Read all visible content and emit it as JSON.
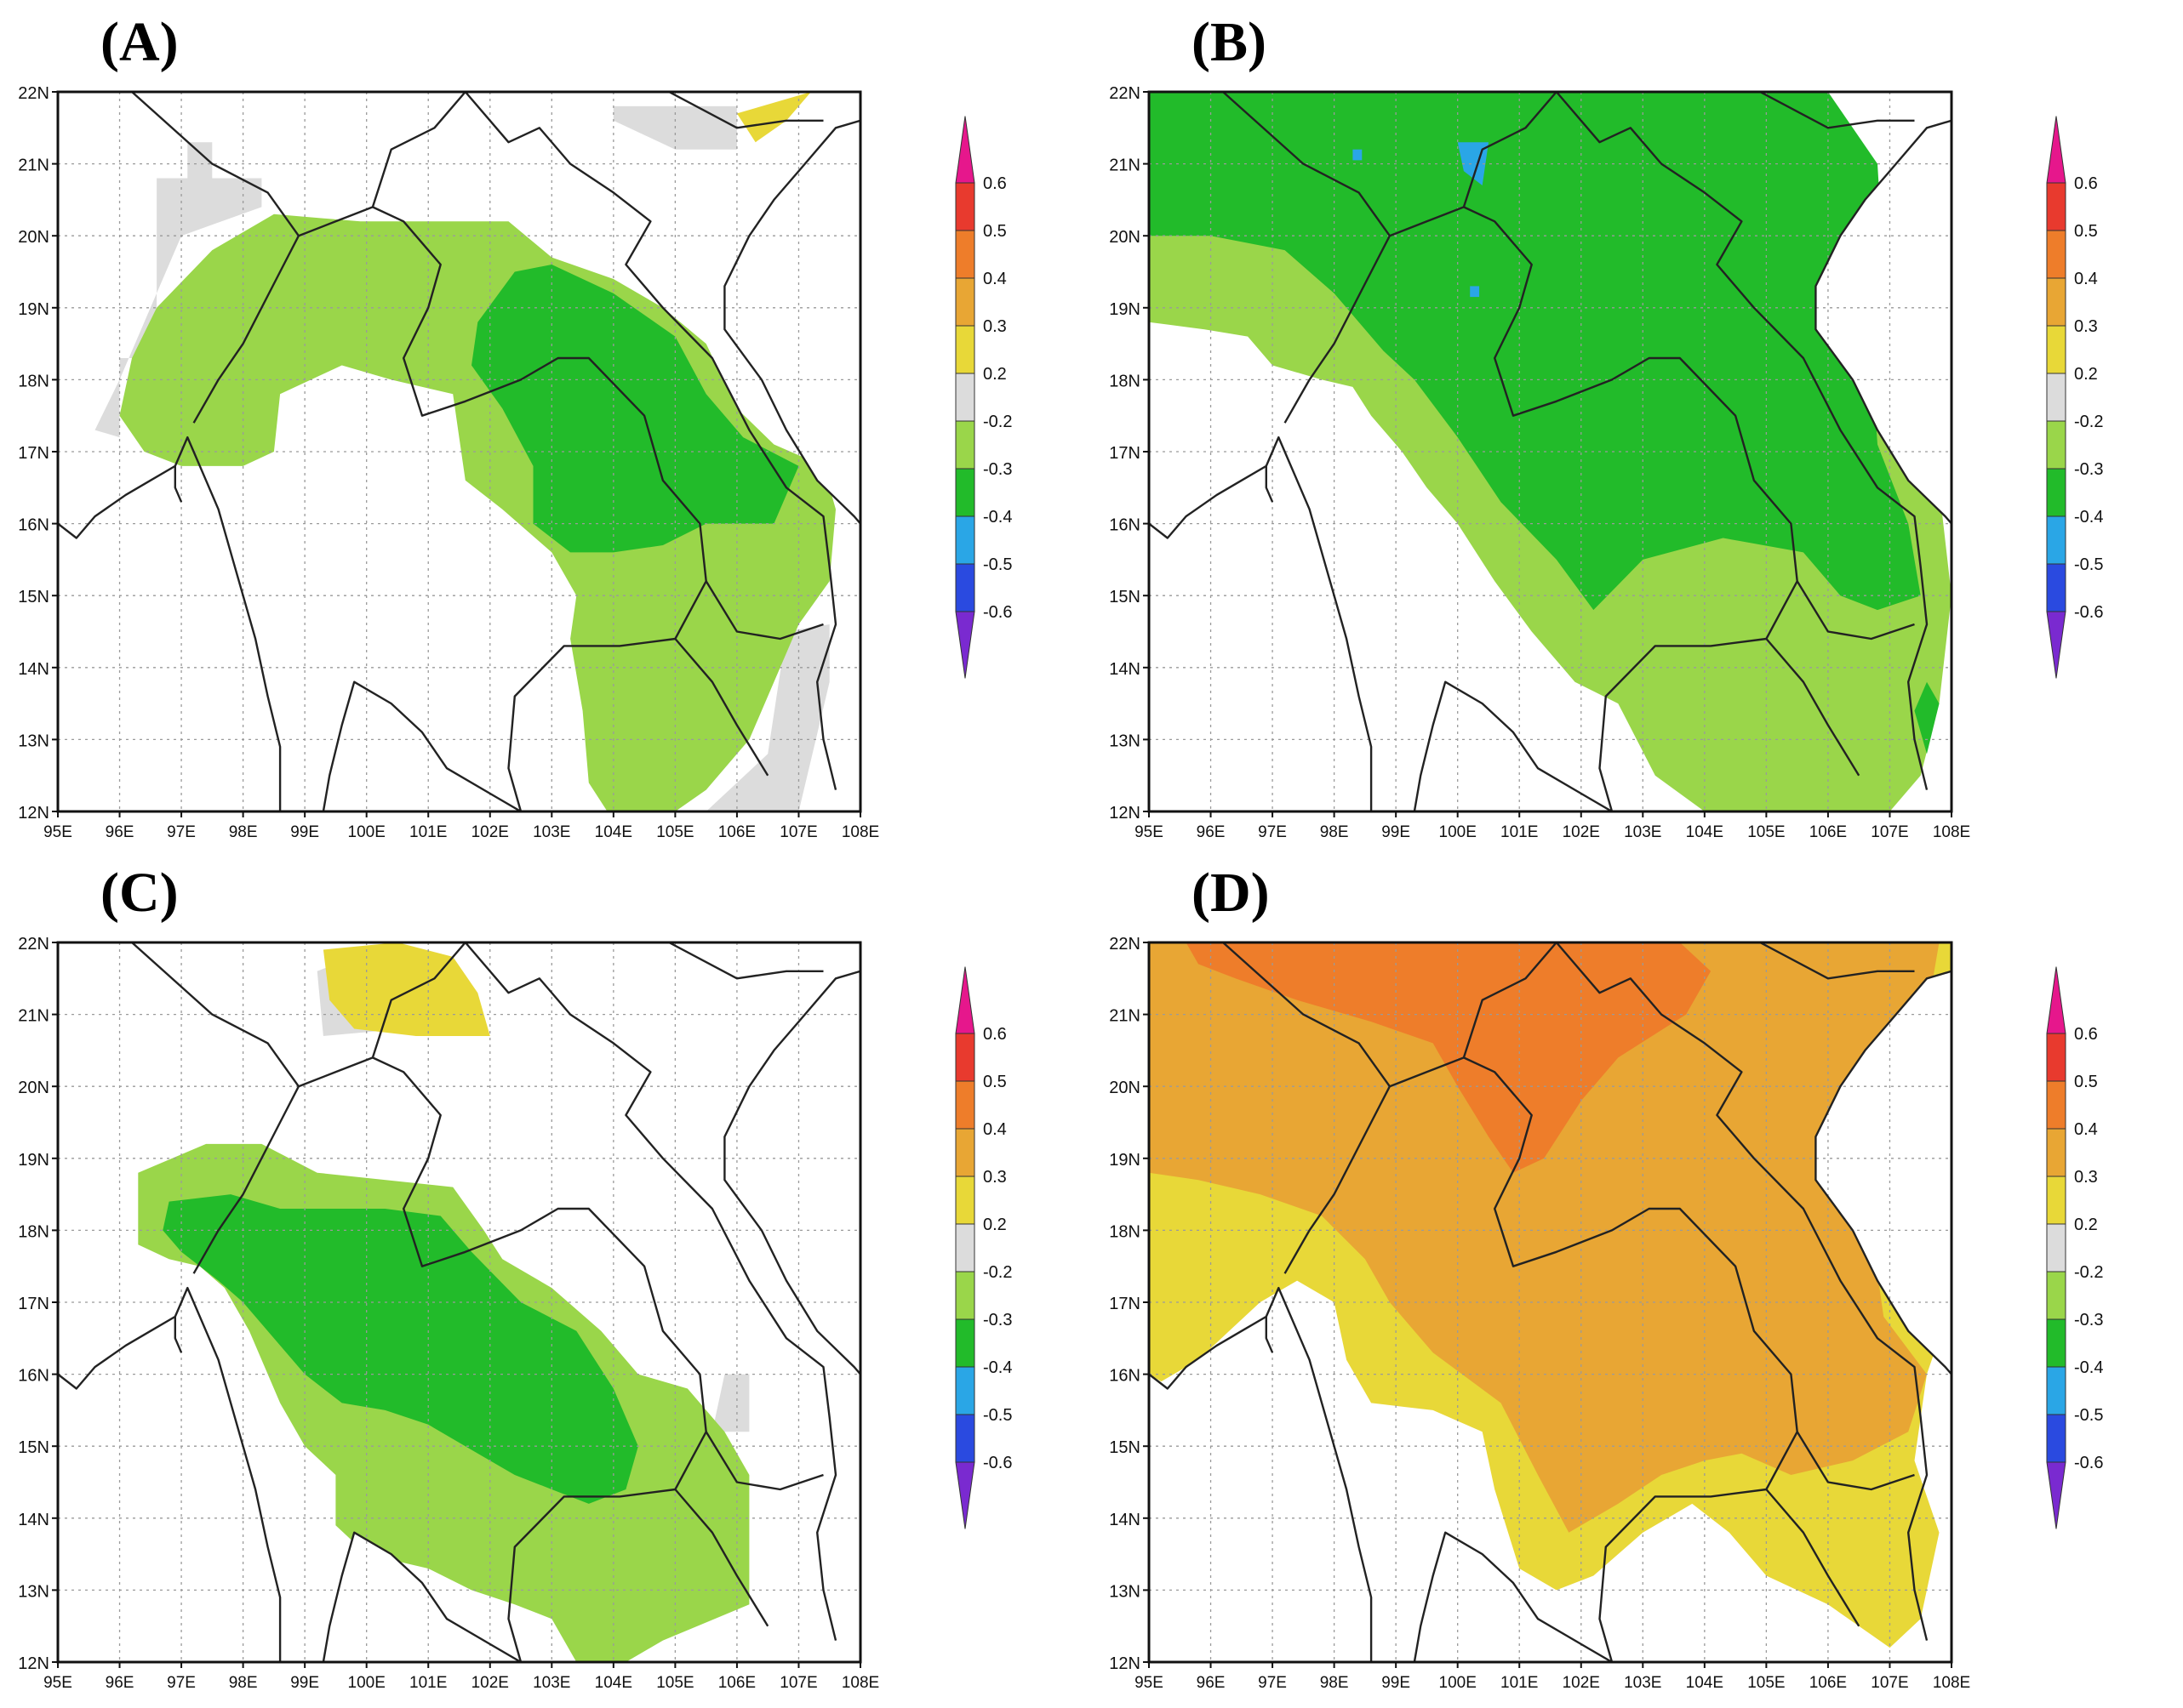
{
  "figure": {
    "panels": [
      {
        "label": "(A)",
        "pattern": "A"
      },
      {
        "label": "(B)",
        "pattern": "B"
      },
      {
        "label": "(C)",
        "pattern": "C"
      },
      {
        "label": "(D)",
        "pattern": "D"
      }
    ],
    "lat_labels": [
      "22N",
      "21N",
      "20N",
      "19N",
      "18N",
      "17N",
      "16N",
      "15N",
      "14N",
      "13N",
      "12N"
    ],
    "lon_labels": [
      "95E",
      "96E",
      "97E",
      "98E",
      "99E",
      "100E",
      "101E",
      "102E",
      "103E",
      "104E",
      "105E",
      "106E",
      "107E",
      "108E"
    ],
    "colorbar": {
      "labels": [
        "0.6",
        "0.5",
        "0.4",
        "0.3",
        "0.2",
        "-0.2",
        "-0.3",
        "-0.4",
        "-0.5",
        "-0.6"
      ],
      "colors": [
        "#e6178c",
        "#e83a2e",
        "#ee7d2a",
        "#e8a634",
        "#e8d838",
        "#dcdcdc",
        "#9ad64a",
        "#22bb2a",
        "#2aa6e6",
        "#2a4ae0",
        "#7a2ad0"
      ]
    }
  },
  "chart_data": {
    "type": "heatmap",
    "domain": {
      "lon_range": [
        95,
        108
      ],
      "lat_range": [
        12,
        22
      ]
    },
    "legend_levels": [
      0.6,
      0.5,
      0.4,
      0.3,
      0.2,
      -0.2,
      -0.3,
      -0.4,
      -0.5,
      -0.6
    ],
    "panels": [
      {
        "label": "(A)",
        "dominant_classes": [
          "-0.2 to -0.3",
          "-0.3 to -0.4"
        ]
      },
      {
        "label": "(B)",
        "dominant_classes": [
          "-0.3 to -0.4",
          "-0.2 to -0.3",
          "-0.4 to -0.5"
        ]
      },
      {
        "label": "(C)",
        "dominant_classes": [
          "-0.2 to -0.3",
          "-0.3 to -0.4",
          "0.2 to 0.3"
        ]
      },
      {
        "label": "(D)",
        "dominant_classes": [
          "0.3 to 0.4",
          "0.4 to 0.5",
          "0.2 to 0.3"
        ]
      }
    ]
  }
}
